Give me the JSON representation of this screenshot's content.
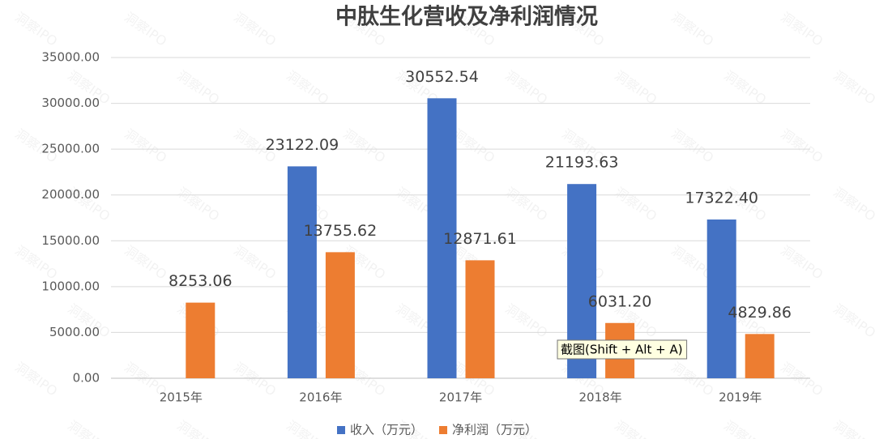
{
  "chart_data": {
    "type": "bar",
    "title": "中肽生化营收及净利润情况",
    "categories": [
      "2015年",
      "2016年",
      "2017年",
      "2018年",
      "2019年"
    ],
    "series": [
      {
        "name": "收入（万元）",
        "color": "#4472c4",
        "values": [
          null,
          23122.09,
          30552.54,
          21193.63,
          17322.4
        ],
        "value_labels": [
          null,
          "23122.09",
          "30552.54",
          "21193.63",
          "17322.40"
        ]
      },
      {
        "name": "净利润（万元）",
        "color": "#ed7d31",
        "values": [
          8253.06,
          13755.62,
          12871.61,
          6031.2,
          4829.86
        ],
        "value_labels": [
          "8253.06",
          "13755.62",
          "12871.61",
          "6031.20",
          "4829.86"
        ]
      }
    ],
    "ylim": [
      0,
      35000
    ],
    "yticks": [
      {
        "value": 0,
        "label": "0.00"
      },
      {
        "value": 5000,
        "label": "5000.00"
      },
      {
        "value": 10000,
        "label": "10000.00"
      },
      {
        "value": 15000,
        "label": "15000.00"
      },
      {
        "value": 20000,
        "label": "20000.00"
      },
      {
        "value": 25000,
        "label": "25000.00"
      },
      {
        "value": 30000,
        "label": "30000.00"
      },
      {
        "value": 35000,
        "label": "35000.00"
      }
    ],
    "grid": true,
    "legend": "bottom",
    "tooltip": "截图(Shift + Alt + A)",
    "watermark": "洞察IPO"
  }
}
